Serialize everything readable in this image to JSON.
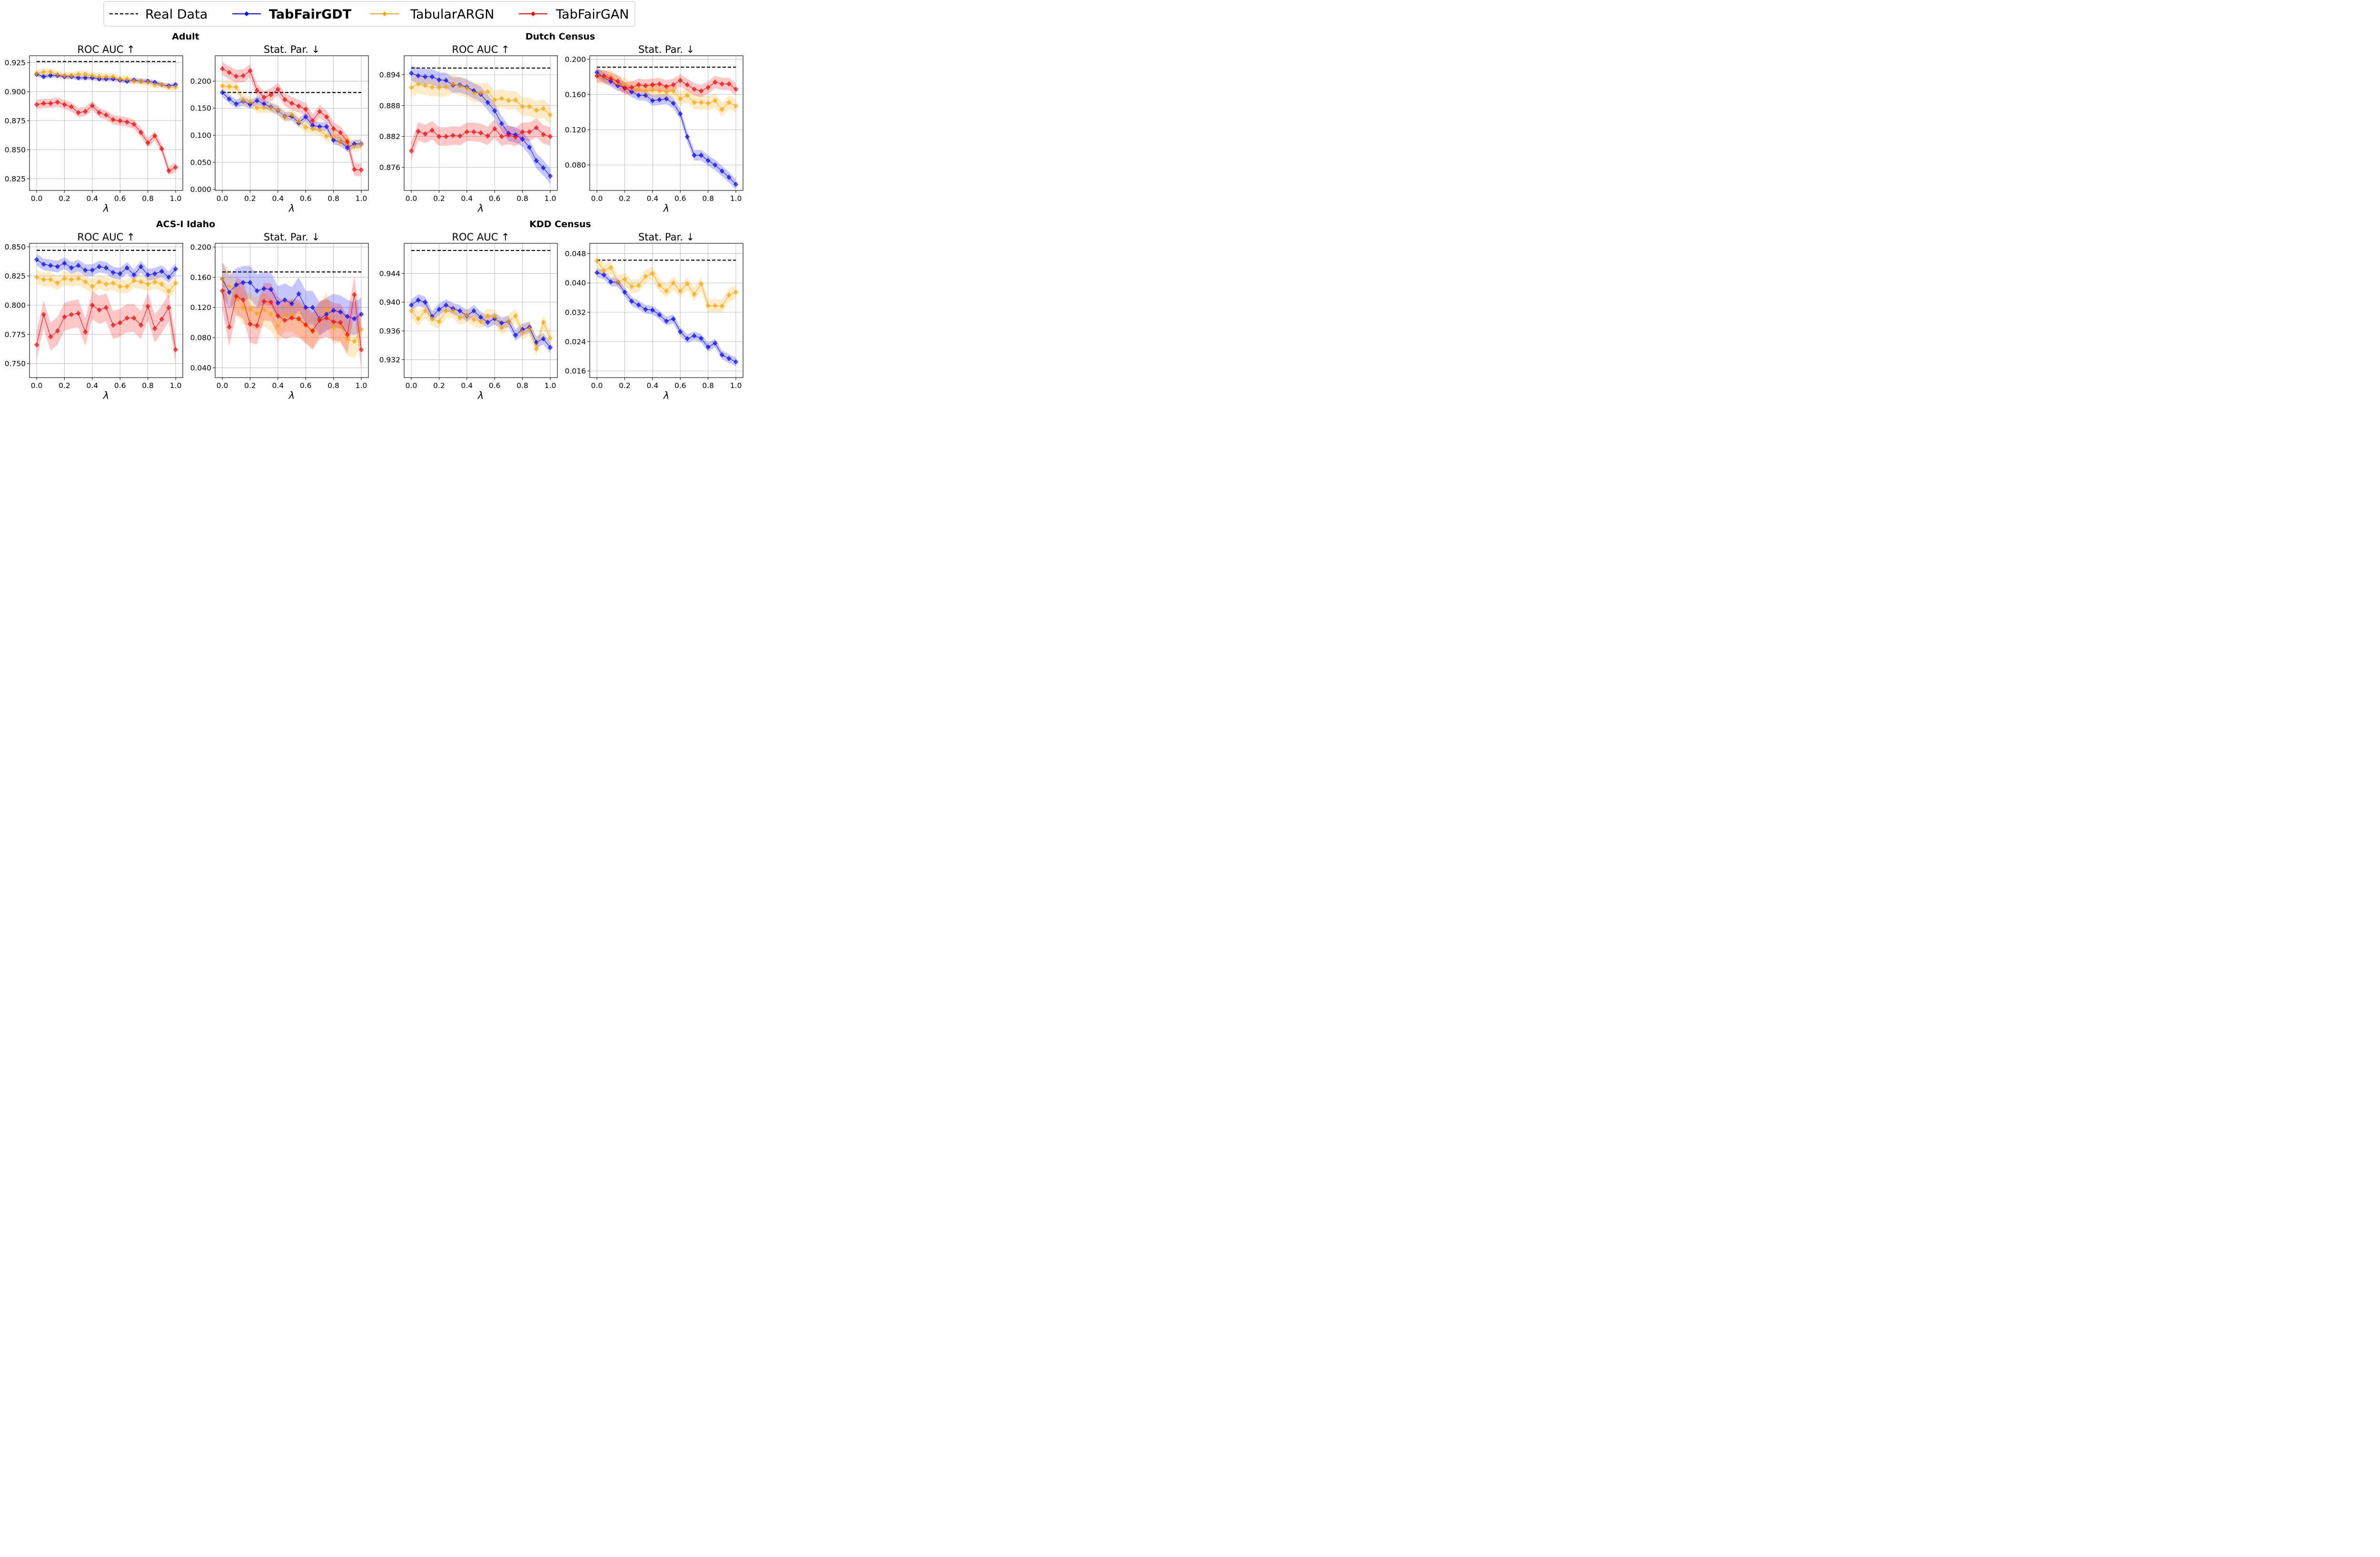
{
  "figure": {
    "groups": [
      {
        "title": "Adult",
        "panels": [
          0,
          1
        ]
      },
      {
        "title": "Dutch Census",
        "panels": [
          2,
          3
        ]
      },
      {
        "title": "ACS-I Idaho",
        "panels": [
          4,
          5
        ]
      },
      {
        "title": "KDD Census",
        "panels": [
          6,
          7
        ]
      }
    ],
    "legend": [
      {
        "label": "Real Data",
        "color": "#000000",
        "style": "dashed"
      },
      {
        "label": "TabFairGDT",
        "color": "#0000ff",
        "style": "marker"
      },
      {
        "label": "TabularARGN",
        "color": "#ffa500",
        "style": "marker"
      },
      {
        "label": "TabFairGAN",
        "color": "#ff0000",
        "style": "marker"
      }
    ],
    "legend_placement": "top-center"
  },
  "chart_data": [
    {
      "type": "line",
      "dataset": "Adult",
      "title": "ROC AUC ↑",
      "xlabel": "λ",
      "xlim": [
        0,
        1
      ],
      "ylim": [
        0.815,
        0.931
      ],
      "grid": true,
      "xticks": [
        "0.0",
        "0.2",
        "0.4",
        "0.6",
        "0.8",
        "1.0"
      ],
      "yticks": [
        "0.825",
        "0.850",
        "0.875",
        "0.900",
        "0.925"
      ],
      "reference": 0.926,
      "x": [
        0,
        0.05,
        0.1,
        0.15,
        0.2,
        0.25,
        0.3,
        0.35,
        0.4,
        0.45,
        0.5,
        0.55,
        0.6,
        0.65,
        0.7,
        0.75,
        0.8,
        0.85,
        0.9,
        0.95,
        1.0
      ],
      "series": [
        {
          "key": "gdt",
          "values": [
            0.915,
            0.913,
            0.914,
            0.914,
            0.913,
            0.913,
            0.912,
            0.912,
            0.912,
            0.911,
            0.911,
            0.911,
            0.91,
            0.909,
            0.91,
            0.909,
            0.909,
            0.908,
            0.906,
            0.905,
            0.906
          ],
          "band": 0.002
        },
        {
          "key": "argn",
          "values": [
            0.916,
            0.917,
            0.917,
            0.915,
            0.914,
            0.914,
            0.915,
            0.915,
            0.914,
            0.913,
            0.913,
            0.913,
            0.911,
            0.911,
            0.909,
            0.909,
            0.908,
            0.906,
            0.906,
            0.904,
            0.904
          ],
          "band": 0.003
        },
        {
          "key": "gan",
          "values": [
            0.889,
            0.89,
            0.89,
            0.891,
            0.889,
            0.887,
            0.882,
            0.883,
            0.888,
            0.882,
            0.88,
            0.876,
            0.875,
            0.874,
            0.872,
            0.865,
            0.856,
            0.862,
            0.851,
            0.832,
            0.835
          ],
          "band": 0.004
        }
      ]
    },
    {
      "type": "line",
      "dataset": "Adult",
      "title": "Stat. Par. ↓",
      "xlabel": "λ",
      "xlim": [
        0,
        1
      ],
      "ylim": [
        -0.002,
        0.247
      ],
      "grid": true,
      "xticks": [
        "0.0",
        "0.2",
        "0.4",
        "0.6",
        "0.8",
        "1.0"
      ],
      "yticks": [
        "0.000",
        "0.050",
        "0.100",
        "0.150",
        "0.200"
      ],
      "reference": 0.179,
      "x": [
        0,
        0.05,
        0.1,
        0.15,
        0.2,
        0.25,
        0.3,
        0.35,
        0.4,
        0.45,
        0.5,
        0.55,
        0.6,
        0.65,
        0.7,
        0.75,
        0.8,
        0.85,
        0.9,
        0.95,
        1.0
      ],
      "series": [
        {
          "key": "gdt",
          "values": [
            0.179,
            0.167,
            0.158,
            0.163,
            0.157,
            0.164,
            0.158,
            0.152,
            0.146,
            0.135,
            0.135,
            0.123,
            0.134,
            0.118,
            0.116,
            0.116,
            0.091,
            0.088,
            0.077,
            0.084,
            0.084
          ],
          "band": 0.008
        },
        {
          "key": "argn",
          "values": [
            0.191,
            0.19,
            0.189,
            0.164,
            0.162,
            0.151,
            0.151,
            0.151,
            0.147,
            0.134,
            0.138,
            0.126,
            0.115,
            0.112,
            0.11,
            0.098,
            0.098,
            0.088,
            0.091,
            0.079,
            0.083
          ],
          "band": 0.01
        },
        {
          "key": "gan",
          "values": [
            0.223,
            0.216,
            0.209,
            0.21,
            0.219,
            0.183,
            0.17,
            0.175,
            0.185,
            0.166,
            0.159,
            0.154,
            0.148,
            0.127,
            0.144,
            0.134,
            0.112,
            0.105,
            0.088,
            0.037,
            0.036
          ],
          "band": 0.012
        }
      ]
    },
    {
      "type": "line",
      "dataset": "Dutch Census",
      "title": "ROC AUC ↑",
      "xlabel": "λ",
      "xlim": [
        0,
        1
      ],
      "ylim": [
        0.8715,
        0.8977
      ],
      "grid": true,
      "xticks": [
        "0.0",
        "0.2",
        "0.4",
        "0.6",
        "0.8",
        "1.0"
      ],
      "yticks": [
        "0.876",
        "0.882",
        "0.888",
        "0.894"
      ],
      "reference": 0.8953,
      "x": [
        0,
        0.05,
        0.1,
        0.15,
        0.2,
        0.25,
        0.3,
        0.35,
        0.4,
        0.45,
        0.5,
        0.55,
        0.6,
        0.65,
        0.7,
        0.75,
        0.8,
        0.85,
        0.9,
        0.95,
        1.0
      ],
      "series": [
        {
          "key": "gdt",
          "values": [
            0.8943,
            0.8938,
            0.8936,
            0.8936,
            0.893,
            0.8929,
            0.892,
            0.892,
            0.8916,
            0.8909,
            0.8902,
            0.8886,
            0.887,
            0.8845,
            0.8826,
            0.8823,
            0.8815,
            0.8799,
            0.8773,
            0.8759,
            0.8743
          ],
          "band": 0.0015
        },
        {
          "key": "argn",
          "values": [
            0.8915,
            0.8922,
            0.8919,
            0.8916,
            0.8915,
            0.8916,
            0.8922,
            0.8918,
            0.8914,
            0.8904,
            0.8905,
            0.8907,
            0.8891,
            0.8894,
            0.889,
            0.8891,
            0.8878,
            0.8878,
            0.8871,
            0.8874,
            0.8862
          ],
          "band": 0.0018
        },
        {
          "key": "gan",
          "values": [
            0.8792,
            0.883,
            0.8825,
            0.8832,
            0.882,
            0.882,
            0.8822,
            0.8821,
            0.8829,
            0.8829,
            0.8827,
            0.8821,
            0.8835,
            0.882,
            0.8823,
            0.8819,
            0.8829,
            0.8829,
            0.8837,
            0.8824,
            0.882
          ],
          "band": 0.0018
        }
      ]
    },
    {
      "type": "line",
      "dataset": "Dutch Census",
      "title": "Stat. Par. ↓",
      "xlabel": "λ",
      "xlim": [
        0,
        1
      ],
      "ylim": [
        0.051,
        0.204
      ],
      "grid": true,
      "xticks": [
        "0.0",
        "0.2",
        "0.4",
        "0.6",
        "0.8",
        "1.0"
      ],
      "yticks": [
        "0.080",
        "0.120",
        "0.160",
        "0.200"
      ],
      "reference": 0.191,
      "x": [
        0,
        0.05,
        0.1,
        0.15,
        0.2,
        0.25,
        0.3,
        0.35,
        0.4,
        0.45,
        0.5,
        0.55,
        0.6,
        0.65,
        0.7,
        0.75,
        0.8,
        0.85,
        0.9,
        0.95,
        1.0
      ],
      "series": [
        {
          "key": "gdt",
          "values": [
            0.185,
            0.179,
            0.175,
            0.17,
            0.168,
            0.163,
            0.159,
            0.159,
            0.153,
            0.154,
            0.155,
            0.15,
            0.138,
            0.112,
            0.091,
            0.091,
            0.085,
            0.08,
            0.073,
            0.066,
            0.058
          ],
          "band": 0.006
        },
        {
          "key": "argn",
          "values": [
            0.181,
            0.179,
            0.18,
            0.173,
            0.171,
            0.167,
            0.166,
            0.164,
            0.165,
            0.164,
            0.163,
            0.164,
            0.155,
            0.159,
            0.151,
            0.151,
            0.15,
            0.153,
            0.143,
            0.151,
            0.147
          ],
          "band": 0.008
        },
        {
          "key": "gan",
          "values": [
            0.181,
            0.181,
            0.178,
            0.175,
            0.167,
            0.168,
            0.171,
            0.17,
            0.171,
            0.172,
            0.169,
            0.171,
            0.176,
            0.171,
            0.166,
            0.164,
            0.168,
            0.174,
            0.172,
            0.172,
            0.166
          ],
          "band": 0.007
        }
      ]
    },
    {
      "type": "line",
      "dataset": "ACS-I Idaho",
      "title": "ROC AUC ↑",
      "xlabel": "λ",
      "xlim": [
        0,
        1
      ],
      "ylim": [
        0.738,
        0.853
      ],
      "grid": true,
      "xticks": [
        "0.0",
        "0.2",
        "0.4",
        "0.6",
        "0.8",
        "1.0"
      ],
      "yticks": [
        "0.750",
        "0.775",
        "0.800",
        "0.825",
        "0.850"
      ],
      "reference": 0.847,
      "x": [
        0,
        0.05,
        0.1,
        0.15,
        0.2,
        0.25,
        0.3,
        0.35,
        0.4,
        0.45,
        0.5,
        0.55,
        0.6,
        0.65,
        0.7,
        0.75,
        0.8,
        0.85,
        0.9,
        0.95,
        1.0
      ],
      "series": [
        {
          "key": "gdt",
          "values": [
            0.839,
            0.835,
            0.834,
            0.833,
            0.836,
            0.832,
            0.834,
            0.83,
            0.83,
            0.833,
            0.832,
            0.828,
            0.827,
            0.832,
            0.826,
            0.833,
            0.826,
            0.827,
            0.829,
            0.824,
            0.831
          ],
          "band": 0.005
        },
        {
          "key": "argn",
          "values": [
            0.824,
            0.822,
            0.822,
            0.819,
            0.823,
            0.822,
            0.823,
            0.82,
            0.816,
            0.82,
            0.818,
            0.819,
            0.816,
            0.816,
            0.821,
            0.82,
            0.818,
            0.82,
            0.818,
            0.812,
            0.819
          ],
          "band": 0.006
        },
        {
          "key": "gan",
          "values": [
            0.766,
            0.792,
            0.773,
            0.778,
            0.79,
            0.792,
            0.793,
            0.777,
            0.8,
            0.796,
            0.798,
            0.783,
            0.785,
            0.789,
            0.789,
            0.783,
            0.799,
            0.78,
            0.788,
            0.798,
            0.762
          ],
          "band": 0.012
        }
      ]
    },
    {
      "type": "line",
      "dataset": "ACS-I Idaho",
      "title": "Stat. Par. ↓",
      "xlabel": "λ",
      "xlim": [
        0,
        1
      ],
      "ylim": [
        0.027,
        0.205
      ],
      "grid": true,
      "xticks": [
        "0.0",
        "0.2",
        "0.4",
        "0.6",
        "0.8",
        "1.0"
      ],
      "yticks": [
        "0.040",
        "0.080",
        "0.120",
        "0.160",
        "0.200"
      ],
      "reference": 0.167,
      "x": [
        0,
        0.05,
        0.1,
        0.15,
        0.2,
        0.25,
        0.3,
        0.35,
        0.4,
        0.45,
        0.5,
        0.55,
        0.6,
        0.65,
        0.7,
        0.75,
        0.8,
        0.85,
        0.9,
        0.95,
        1.0
      ],
      "series": [
        {
          "key": "gdt",
          "values": [
            0.158,
            0.14,
            0.15,
            0.153,
            0.153,
            0.142,
            0.145,
            0.144,
            0.126,
            0.13,
            0.125,
            0.138,
            0.12,
            0.12,
            0.105,
            0.111,
            0.116,
            0.114,
            0.108,
            0.105,
            0.111
          ],
          "band": 0.022
        },
        {
          "key": "argn",
          "values": [
            0.158,
            0.148,
            0.132,
            0.12,
            0.117,
            0.112,
            0.117,
            0.111,
            0.095,
            0.11,
            0.11,
            0.104,
            0.096,
            0.088,
            0.104,
            0.118,
            0.093,
            0.096,
            0.078,
            0.075,
            0.091
          ],
          "band": 0.022
        },
        {
          "key": "gan",
          "values": [
            0.142,
            0.094,
            0.135,
            0.13,
            0.098,
            0.096,
            0.128,
            0.127,
            0.109,
            0.103,
            0.106,
            0.105,
            0.097,
            0.089,
            0.103,
            0.106,
            0.101,
            0.1,
            0.084,
            0.137,
            0.064
          ],
          "band": 0.025
        }
      ]
    },
    {
      "type": "line",
      "dataset": "KDD Census",
      "title": "ROC AUC ↑",
      "xlabel": "λ",
      "xlim": [
        0,
        1
      ],
      "ylim": [
        0.9295,
        0.9482
      ],
      "grid": true,
      "xticks": [
        "0.0",
        "0.2",
        "0.4",
        "0.6",
        "0.8",
        "1.0"
      ],
      "yticks": [
        "0.932",
        "0.936",
        "0.940",
        "0.944"
      ],
      "reference": 0.9472,
      "x": [
        0,
        0.05,
        0.1,
        0.15,
        0.2,
        0.25,
        0.3,
        0.35,
        0.4,
        0.45,
        0.5,
        0.55,
        0.6,
        0.65,
        0.7,
        0.75,
        0.8,
        0.85,
        0.9,
        0.95,
        1.0
      ],
      "series": [
        {
          "key": "gdt",
          "values": [
            0.9396,
            0.9403,
            0.94,
            0.938,
            0.939,
            0.9396,
            0.9391,
            0.9388,
            0.9381,
            0.9388,
            0.9379,
            0.9372,
            0.9377,
            0.9371,
            0.9373,
            0.9354,
            0.9362,
            0.9365,
            0.9344,
            0.9349,
            0.9337
          ],
          "band": 0.0008
        },
        {
          "key": "argn",
          "values": [
            0.9388,
            0.9377,
            0.9388,
            0.9377,
            0.9373,
            0.9388,
            0.9388,
            0.9378,
            0.9382,
            0.9376,
            0.9373,
            0.9381,
            0.938,
            0.9364,
            0.9373,
            0.9381,
            0.9358,
            0.9363,
            0.9335,
            0.9372,
            0.935
          ],
          "band": 0.001
        }
      ]
    },
    {
      "type": "line",
      "dataset": "KDD Census",
      "title": "Stat. Par. ↓",
      "xlabel": "λ",
      "xlim": [
        0,
        1
      ],
      "ylim": [
        0.0142,
        0.0508
      ],
      "grid": true,
      "xticks": [
        "0.0",
        "0.2",
        "0.4",
        "0.6",
        "0.8",
        "1.0"
      ],
      "yticks": [
        "0.016",
        "0.024",
        "0.032",
        "0.040",
        "0.048"
      ],
      "reference": 0.0462,
      "x": [
        0,
        0.05,
        0.1,
        0.15,
        0.2,
        0.25,
        0.3,
        0.35,
        0.4,
        0.45,
        0.5,
        0.55,
        0.6,
        0.65,
        0.7,
        0.75,
        0.8,
        0.85,
        0.9,
        0.95,
        1.0
      ],
      "series": [
        {
          "key": "gdt",
          "values": [
            0.0428,
            0.0422,
            0.0403,
            0.0402,
            0.0375,
            0.035,
            0.034,
            0.0328,
            0.0326,
            0.0313,
            0.0296,
            0.0302,
            0.0267,
            0.0248,
            0.0256,
            0.0249,
            0.0225,
            0.0236,
            0.0204,
            0.0194,
            0.0185
          ],
          "band": 0.0012
        },
        {
          "key": "argn",
          "values": [
            0.046,
            0.0434,
            0.0442,
            0.0403,
            0.041,
            0.039,
            0.0393,
            0.0418,
            0.0426,
            0.0394,
            0.0378,
            0.04,
            0.0378,
            0.0398,
            0.0369,
            0.0398,
            0.0338,
            0.0338,
            0.0337,
            0.0367,
            0.0375
          ],
          "band": 0.0018
        }
      ]
    }
  ]
}
